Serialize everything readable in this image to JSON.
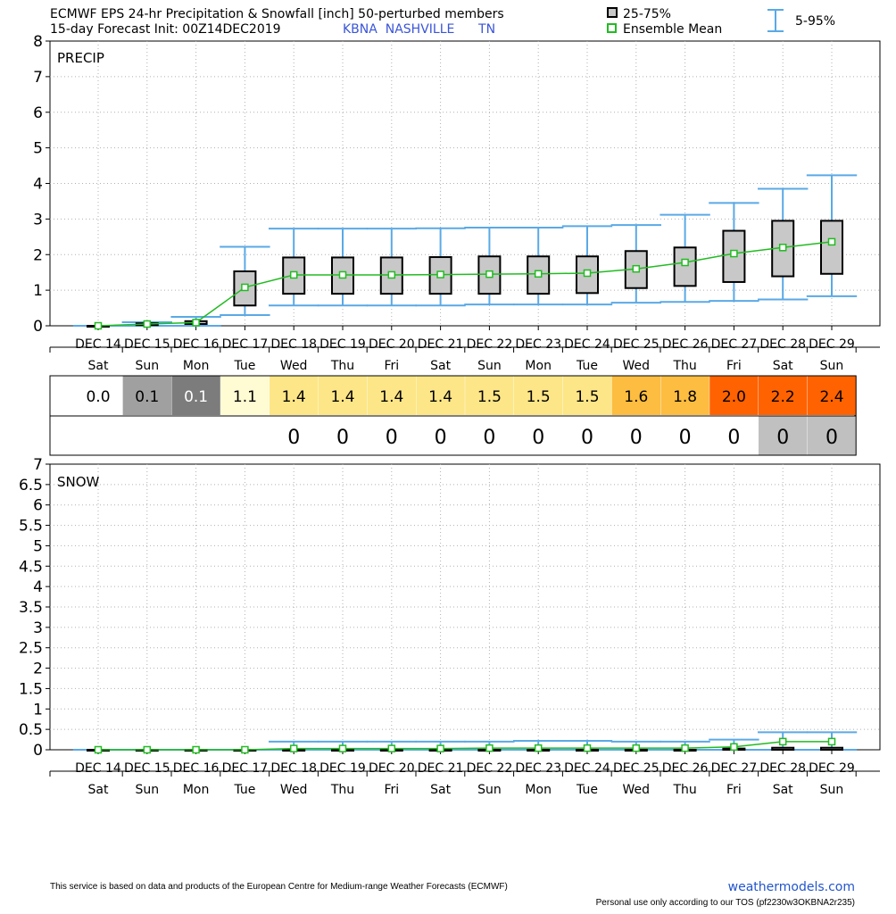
{
  "header": {
    "title_line1": "ECMWF EPS 24-hr Precipitation & Snowfall [inch]  50-perturbed members",
    "title_line2_prefix": "15-day Forecast Init: 00Z14DEC2019",
    "station": "KBNA  NASHVILLE      TN",
    "legend_box": "25-75%",
    "legend_mean": "Ensemble Mean",
    "legend_range": "5-95%"
  },
  "colors": {
    "whisker": "#5aa9e6",
    "mean": "#22bb22",
    "box_fill": "#c8c8c8",
    "station_text": "#3a55d8",
    "grid": "#b0b0b0"
  },
  "chart_data": [
    {
      "type": "box",
      "panel_label": "PRECIP",
      "ylim": [
        0,
        8
      ],
      "yticks": [
        "0",
        "1",
        "2",
        "3",
        "4",
        "5",
        "6",
        "7",
        "8"
      ],
      "categories": [
        "DEC 14",
        "DEC 15",
        "DEC 16",
        "DEC 17",
        "DEC 18",
        "DEC 19",
        "DEC 20",
        "DEC 21",
        "DEC 22",
        "DEC 23",
        "DEC 24",
        "DEC 25",
        "DEC 26",
        "DEC 27",
        "DEC 28",
        "DEC 29"
      ],
      "weekdays": [
        "Sat",
        "Sun",
        "Mon",
        "Tue",
        "Wed",
        "Thu",
        "Fri",
        "Sat",
        "Sun",
        "Mon",
        "Tue",
        "Wed",
        "Thu",
        "Fri",
        "Sat",
        "Sun"
      ],
      "mean": [
        0.0,
        0.05,
        0.09,
        1.08,
        1.43,
        1.43,
        1.43,
        1.44,
        1.45,
        1.46,
        1.48,
        1.6,
        1.78,
        2.03,
        2.2,
        2.36
      ],
      "q25": [
        0.0,
        0.02,
        0.05,
        0.57,
        0.9,
        0.9,
        0.9,
        0.9,
        0.9,
        0.9,
        0.92,
        1.06,
        1.12,
        1.23,
        1.39,
        1.46
      ],
      "q75": [
        0.0,
        0.07,
        0.13,
        1.53,
        1.92,
        1.92,
        1.92,
        1.93,
        1.95,
        1.95,
        1.95,
        2.1,
        2.2,
        2.67,
        2.95,
        2.95
      ],
      "p5": [
        0.0,
        0.0,
        0.0,
        0.3,
        0.57,
        0.57,
        0.57,
        0.57,
        0.6,
        0.6,
        0.6,
        0.65,
        0.67,
        0.7,
        0.74,
        0.83
      ],
      "p95": [
        0.0,
        0.1,
        0.25,
        2.22,
        2.73,
        2.73,
        2.73,
        2.74,
        2.76,
        2.76,
        2.8,
        2.83,
        3.12,
        3.45,
        3.85,
        4.23
      ]
    },
    {
      "type": "table",
      "row1_values": [
        "0.0",
        "0.1",
        "0.1",
        "1.1",
        "1.4",
        "1.4",
        "1.4",
        "1.4",
        "1.5",
        "1.5",
        "1.5",
        "1.6",
        "1.8",
        "2.0",
        "2.2",
        "2.4"
      ],
      "row1_colors": [
        "#ffffff",
        "#a0a0a0",
        "#7c7c7c",
        "#fffbd2",
        "#fde687",
        "#fde687",
        "#fde687",
        "#fde687",
        "#fde687",
        "#fde687",
        "#fde687",
        "#fdbd40",
        "#fdbd40",
        "#ff6200",
        "#ff6200",
        "#ff6200"
      ],
      "row1_text_colors": [
        "#000000",
        "#000000",
        "#ffffff",
        "#000000",
        "#000000",
        "#000000",
        "#000000",
        "#000000",
        "#000000",
        "#000000",
        "#000000",
        "#000000",
        "#000000",
        "#000000",
        "#000000",
        "#000000"
      ],
      "row2_values": [
        "",
        "",
        "",
        "",
        "0",
        "0",
        "0",
        "0",
        "0",
        "0",
        "0",
        "0",
        "0",
        "0",
        "0",
        "0"
      ],
      "row2_colors": [
        "#ffffff",
        "#ffffff",
        "#ffffff",
        "#ffffff",
        "#ffffff",
        "#ffffff",
        "#ffffff",
        "#ffffff",
        "#ffffff",
        "#ffffff",
        "#ffffff",
        "#ffffff",
        "#ffffff",
        "#ffffff",
        "#c0c0c0",
        "#c0c0c0"
      ]
    },
    {
      "type": "box",
      "panel_label": "SNOW",
      "ylim": [
        0,
        7
      ],
      "yticks": [
        "0",
        "0.5",
        "1",
        "1.5",
        "2",
        "2.5",
        "3",
        "3.5",
        "4",
        "4.5",
        "5",
        "5.5",
        "6",
        "6.5",
        "7"
      ],
      "categories": [
        "DEC 14",
        "DEC 15",
        "DEC 16",
        "DEC 17",
        "DEC 18",
        "DEC 19",
        "DEC 20",
        "DEC 21",
        "DEC 22",
        "DEC 23",
        "DEC 24",
        "DEC 25",
        "DEC 26",
        "DEC 27",
        "DEC 28",
        "DEC 29"
      ],
      "weekdays": [
        "Sat",
        "Sun",
        "Mon",
        "Tue",
        "Wed",
        "Thu",
        "Fri",
        "Sat",
        "Sun",
        "Mon",
        "Tue",
        "Wed",
        "Thu",
        "Fri",
        "Sat",
        "Sun"
      ],
      "mean": [
        0.0,
        0.0,
        0.0,
        0.0,
        0.03,
        0.03,
        0.03,
        0.03,
        0.04,
        0.04,
        0.04,
        0.04,
        0.04,
        0.07,
        0.2,
        0.2
      ],
      "q25": [
        0.0,
        0.0,
        0.0,
        0.0,
        0.0,
        0.0,
        0.0,
        0.0,
        0.0,
        0.0,
        0.0,
        0.0,
        0.0,
        0.0,
        0.0,
        0.0
      ],
      "q75": [
        0.0,
        0.0,
        0.0,
        0.0,
        0.0,
        0.0,
        0.0,
        0.0,
        0.0,
        0.0,
        0.0,
        0.0,
        0.0,
        0.03,
        0.05,
        0.05
      ],
      "p5": [
        0.0,
        0.0,
        0.0,
        0.0,
        0.0,
        0.0,
        0.0,
        0.0,
        0.0,
        0.0,
        0.0,
        0.0,
        0.0,
        0.0,
        0.0,
        0.0
      ],
      "p95": [
        0.0,
        0.0,
        0.0,
        0.0,
        0.2,
        0.2,
        0.2,
        0.2,
        0.2,
        0.22,
        0.22,
        0.2,
        0.2,
        0.25,
        0.43,
        0.43
      ]
    }
  ],
  "footer": {
    "disclaimer": "This service is based on data and products of the European Centre for Medium-range Weather Forecasts (ECMWF)",
    "brand": "weathermodels.com",
    "tos": "Personal use only according to our TOS (pf2230w3OKBNA2r235)"
  }
}
